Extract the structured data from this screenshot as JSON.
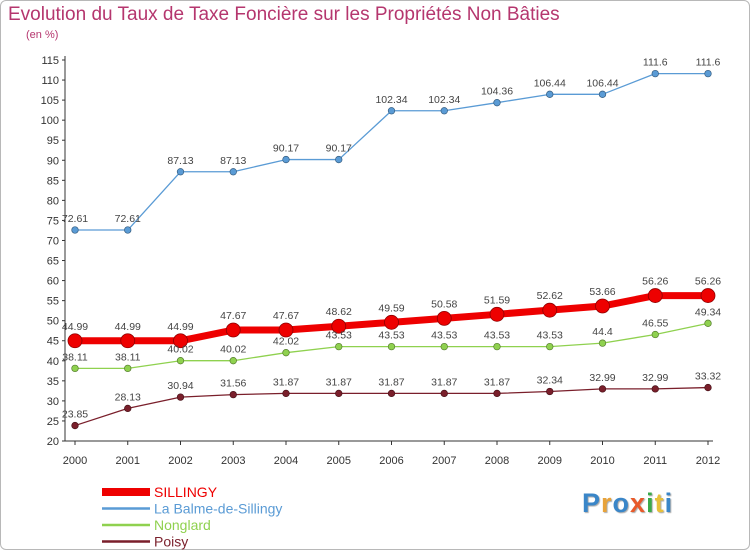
{
  "chart_data": {
    "type": "line",
    "title": "Evolution du Taux de Taxe Foncière sur les Propriétés Non Bâties",
    "ylabel": "(en %)",
    "xlabel": "",
    "x": [
      "2000",
      "2001",
      "2002",
      "2003",
      "2004",
      "2005",
      "2006",
      "2007",
      "2008",
      "2009",
      "2010",
      "2011",
      "2012"
    ],
    "ylim": [
      20,
      115
    ],
    "ytick_step": 5,
    "grid": false,
    "legend_position": "bottom-left",
    "series": [
      {
        "name": "SILLINGY",
        "color": "#ee0000",
        "emphasis": true,
        "values": [
          44.99,
          44.99,
          44.99,
          47.67,
          47.67,
          48.62,
          49.59,
          50.58,
          51.59,
          52.62,
          53.66,
          56.26,
          56.26
        ],
        "labels": [
          "44.99",
          "44.99",
          "44.99",
          "47.67",
          "47.67",
          "48.62",
          "49.59",
          "50.58",
          "51.59",
          "52.62",
          "53.66",
          "56.26",
          "56.26"
        ]
      },
      {
        "name": "La Balme-de-Sillingy",
        "color": "#5a9bd5",
        "emphasis": false,
        "values": [
          72.61,
          72.61,
          87.13,
          87.13,
          90.17,
          90.17,
          102.34,
          102.34,
          104.36,
          106.44,
          106.44,
          111.6,
          111.6
        ],
        "labels": [
          "72.61",
          "72.61",
          "87.13",
          "87.13",
          "90.17",
          "90.17",
          "102.34",
          "102.34",
          "104.36",
          "106.44",
          "106.44",
          "111.6",
          "111.6"
        ]
      },
      {
        "name": "Nonglard",
        "color": "#8fd14f",
        "emphasis": false,
        "values": [
          38.11,
          38.11,
          40.02,
          40.02,
          42.02,
          43.53,
          43.53,
          43.53,
          43.53,
          43.53,
          44.4,
          46.55,
          49.34
        ],
        "labels": [
          "38.11",
          "38.11",
          "40.02",
          "40.02",
          "42.02",
          "43.53",
          "43.53",
          "43.53",
          "43.53",
          "43.53",
          "44.4",
          "46.55",
          "49.34"
        ]
      },
      {
        "name": "Poisy",
        "color": "#7a1f2b",
        "emphasis": false,
        "values": [
          23.85,
          28.13,
          30.94,
          31.56,
          31.87,
          31.87,
          31.87,
          31.87,
          31.87,
          32.34,
          32.99,
          32.99,
          33.32
        ],
        "labels": [
          "23.85",
          "28.13",
          "30.94",
          "31.56",
          "31.87",
          "31.87",
          "31.87",
          "31.87",
          "31.87",
          "32.34",
          "32.99",
          "32.99",
          "33.32"
        ]
      }
    ]
  },
  "brand": {
    "letters": [
      {
        "ch": "P",
        "color": "#3a86c8"
      },
      {
        "ch": "r",
        "color": "#e8a33a"
      },
      {
        "ch": "o",
        "color": "#3a86c8"
      },
      {
        "ch": "x",
        "color": "#e85a2a"
      },
      {
        "ch": "i",
        "color": "#3aaa4a"
      },
      {
        "ch": "t",
        "color": "#e8c03a"
      },
      {
        "ch": "i",
        "color": "#3a86c8"
      }
    ]
  }
}
